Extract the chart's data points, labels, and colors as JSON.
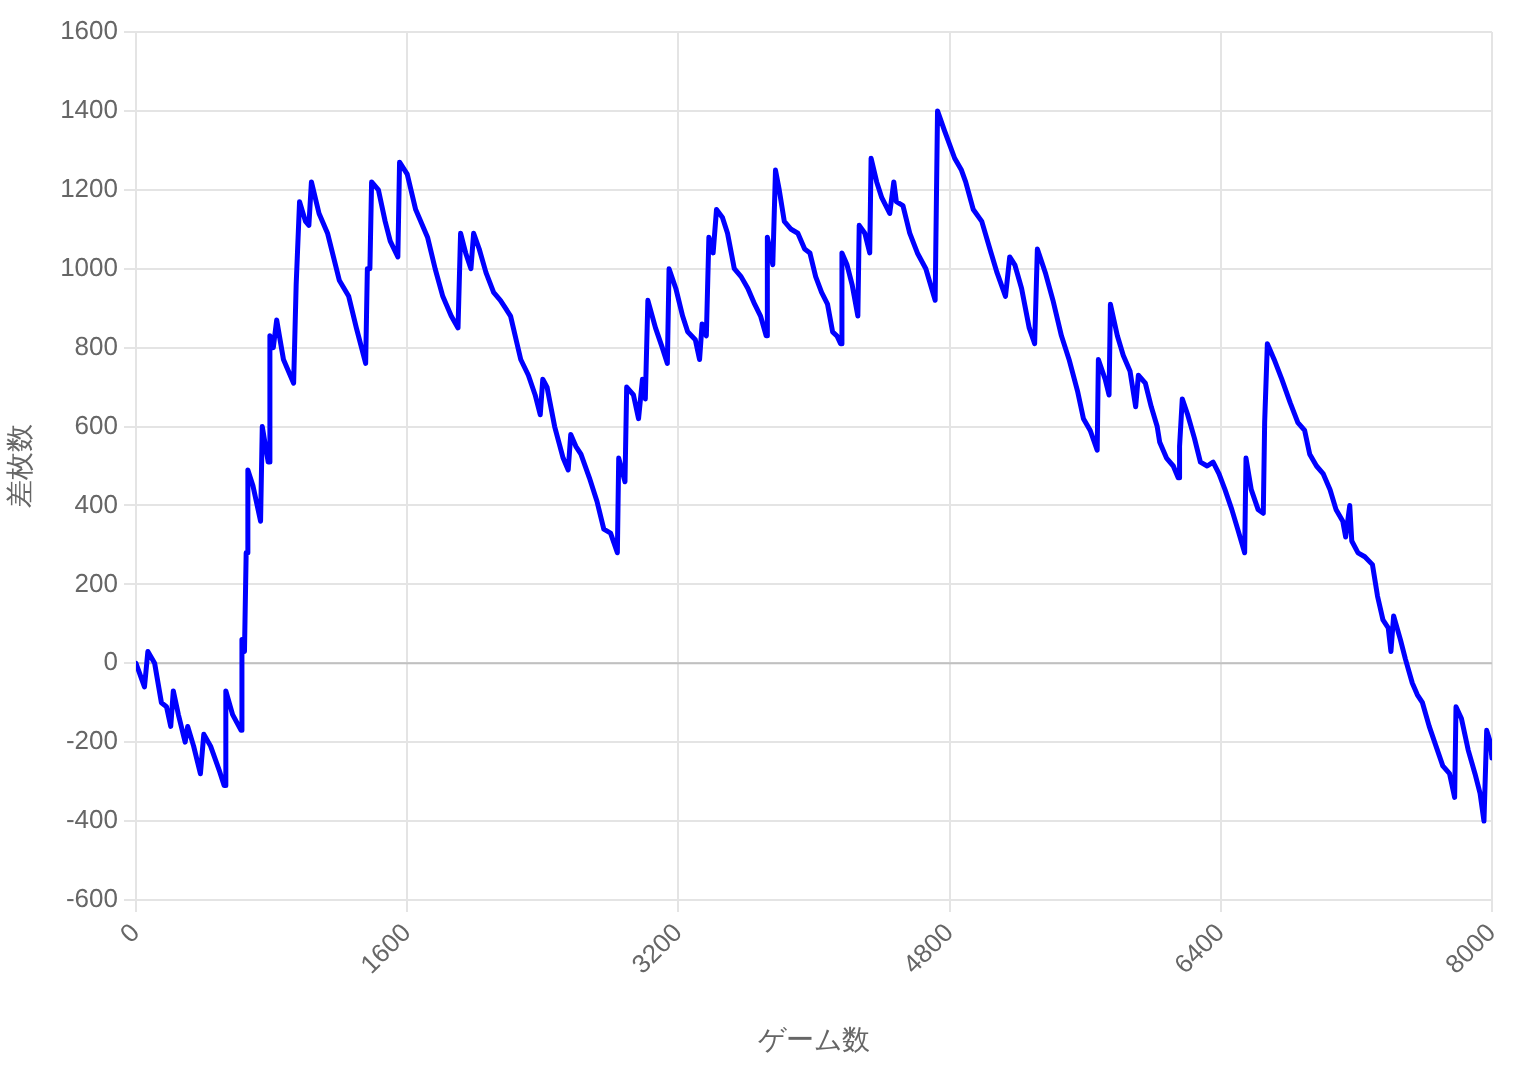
{
  "chart_data": {
    "type": "line",
    "xlabel": "ゲーム数",
    "ylabel": "差枚数",
    "x": [
      0,
      50,
      70,
      110,
      150,
      180,
      205,
      220,
      250,
      290,
      305,
      340,
      380,
      400,
      440,
      490,
      520,
      530,
      570,
      620,
      625,
      640,
      650,
      660,
      690,
      735,
      745,
      780,
      790,
      810,
      830,
      870,
      930,
      945,
      965,
      1000,
      1020,
      1035,
      1080,
      1130,
      1200,
      1255,
      1300,
      1355,
      1365,
      1380,
      1390,
      1430,
      1470,
      1500,
      1545,
      1555,
      1600,
      1650,
      1720,
      1765,
      1810,
      1860,
      1900,
      1915,
      1945,
      1976,
      1992,
      2025,
      2065,
      2110,
      2150,
      2180,
      2210,
      2270,
      2315,
      2355,
      2385,
      2400,
      2425,
      2470,
      2520,
      2550,
      2565,
      2595,
      2625,
      2675,
      2720,
      2760,
      2800,
      2840,
      2848,
      2885,
      2895,
      2935,
      2965,
      2988,
      3005,
      3020,
      3065,
      3105,
      3135,
      3145,
      3185,
      3225,
      3255,
      3300,
      3325,
      3340,
      3365,
      3380,
      3405,
      3425,
      3460,
      3490,
      3530,
      3570,
      3610,
      3650,
      3685,
      3718,
      3725,
      3757,
      3773,
      3795,
      3825,
      3865,
      3905,
      3945,
      3976,
      4010,
      4045,
      4080,
      4110,
      4135,
      4157,
      4165,
      4195,
      4225,
      4259,
      4267,
      4300,
      4329,
      4337,
      4370,
      4400,
      4447,
      4471,
      4486,
      4525,
      4565,
      4610,
      4660,
      4715,
      4729,
      4770,
      4830,
      4870,
      4895,
      4940,
      4990,
      5045,
      5080,
      5130,
      5155,
      5185,
      5225,
      5270,
      5302,
      5318,
      5365,
      5410,
      5460,
      5505,
      5555,
      5590,
      5630,
      5671,
      5678,
      5718,
      5741,
      5749,
      5790,
      5825,
      5865,
      5898,
      5914,
      5955,
      5990,
      6025,
      6040,
      6080,
      6120,
      6149,
      6157,
      6173,
      6205,
      6245,
      6280,
      6320,
      6355,
      6390,
      6425,
      6465,
      6500,
      6541,
      6549,
      6580,
      6620,
      6651,
      6659,
      6675,
      6715,
      6760,
      6810,
      6855,
      6895,
      6925,
      6965,
      7005,
      7045,
      7080,
      7120,
      7137,
      7161,
      7173,
      7210,
      7250,
      7295,
      7325,
      7357,
      7388,
      7404,
      7420,
      7460,
      7490,
      7530,
      7560,
      7590,
      7630,
      7670,
      7710,
      7750,
      7780,
      7788,
      7820,
      7860,
      7900,
      7930,
      7953,
      7969,
      7990,
      8000
    ],
    "series": [
      {
        "color": "#0000ff",
        "values": [
          0,
          -60,
          30,
          0,
          -100,
          -110,
          -160,
          -70,
          -130,
          -200,
          -160,
          -210,
          -280,
          -180,
          -210,
          -270,
          -310,
          -70,
          -130,
          -170,
          60,
          30,
          280,
          490,
          450,
          360,
          600,
          510,
          830,
          800,
          870,
          770,
          710,
          960,
          1170,
          1120,
          1110,
          1220,
          1140,
          1090,
          970,
          930,
          850,
          760,
          1000,
          1000,
          1220,
          1200,
          1120,
          1070,
          1030,
          1270,
          1240,
          1150,
          1080,
          1000,
          930,
          880,
          850,
          1090,
          1040,
          1000,
          1090,
          1050,
          990,
          940,
          920,
          900,
          880,
          770,
          730,
          680,
          630,
          720,
          700,
          600,
          520,
          490,
          580,
          550,
          530,
          470,
          410,
          340,
          330,
          280,
          520,
          460,
          700,
          680,
          620,
          720,
          670,
          920,
          850,
          800,
          760,
          1000,
          950,
          880,
          840,
          820,
          770,
          860,
          830,
          1080,
          1040,
          1150,
          1130,
          1090,
          1000,
          980,
          950,
          910,
          880,
          830,
          1080,
          1010,
          1250,
          1200,
          1120,
          1100,
          1090,
          1050,
          1040,
          980,
          940,
          910,
          840,
          830,
          810,
          1040,
          1010,
          960,
          880,
          1110,
          1090,
          1040,
          1280,
          1220,
          1180,
          1140,
          1220,
          1170,
          1160,
          1090,
          1040,
          1000,
          920,
          1400,
          1350,
          1280,
          1250,
          1220,
          1150,
          1120,
          1040,
          990,
          930,
          1030,
          1010,
          950,
          850,
          810,
          1050,
          990,
          920,
          830,
          770,
          690,
          620,
          590,
          540,
          770,
          720,
          680,
          910,
          830,
          780,
          740,
          650,
          730,
          710,
          650,
          600,
          560,
          520,
          500,
          470,
          550,
          670,
          630,
          570,
          510,
          500,
          510,
          480,
          440,
          390,
          340,
          280,
          520,
          440,
          390,
          380,
          610,
          810,
          770,
          720,
          660,
          610,
          590,
          530,
          500,
          480,
          440,
          390,
          360,
          320,
          400,
          310,
          280,
          270,
          250,
          170,
          110,
          90,
          30,
          120,
          60,
          10,
          -50,
          -80,
          -100,
          -160,
          -210,
          -260,
          -280,
          -340,
          -110,
          -140,
          -220,
          -280,
          -330,
          -400,
          -170,
          -200,
          -240
        ]
      }
    ],
    "xlim": [
      0,
      8000
    ],
    "xticks": [
      0,
      1600,
      3200,
      4800,
      6400,
      8000
    ],
    "ylim": [
      -600,
      1600
    ],
    "yticks": [
      -600,
      -400,
      -200,
      0,
      200,
      400,
      600,
      800,
      1000,
      1200,
      1400,
      1600
    ],
    "grid": true,
    "line_style": "solid",
    "ref_lines": [
      {
        "axis": "y",
        "value": 0,
        "color": "#c0c0c0"
      }
    ]
  }
}
